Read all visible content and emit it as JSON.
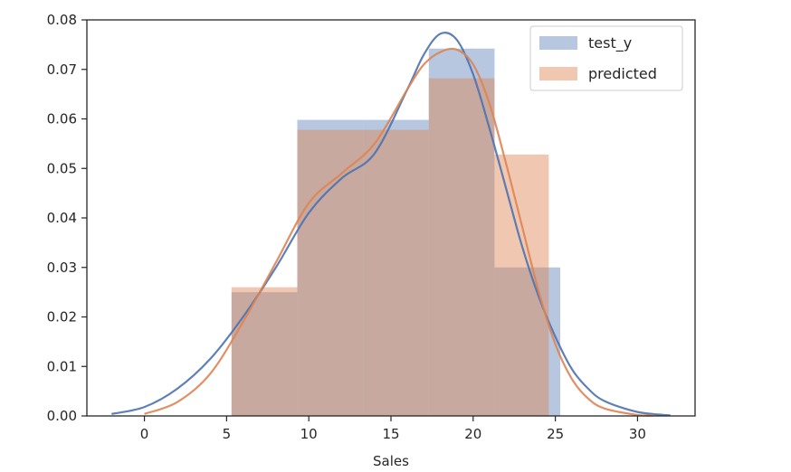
{
  "chart_data": {
    "type": "bar",
    "xlabel": "Sales",
    "ylabel": "",
    "xlim": [
      -3.5,
      33.5
    ],
    "ylim": [
      0,
      0.08
    ],
    "xticks": [
      0,
      5,
      10,
      15,
      20,
      25,
      30
    ],
    "xtick_labels": [
      "0",
      "5",
      "10",
      "15",
      "20",
      "25",
      "30"
    ],
    "yticks": [
      0,
      0.01,
      0.02,
      0.03,
      0.04,
      0.05,
      0.06,
      0.07,
      0.08
    ],
    "ytick_labels": [
      "0.00",
      "0.01",
      "0.02",
      "0.03",
      "0.04",
      "0.05",
      "0.06",
      "0.07",
      "0.08"
    ],
    "grid": false,
    "legend_position": "top-right",
    "series": [
      {
        "name": "test_y",
        "color": "#4c72b0",
        "histogram": {
          "bins": [
            [
              5.3,
              9.3
            ],
            [
              9.3,
              13.3
            ],
            [
              13.3,
              17.3
            ],
            [
              17.3,
              21.3
            ],
            [
              21.3,
              25.3
            ]
          ],
          "density": [
            0.025,
            0.0598,
            0.0598,
            0.0742,
            0.03
          ]
        },
        "kde": {
          "x": [
            -2,
            0,
            2,
            4,
            6,
            8,
            10,
            12,
            14,
            16,
            17,
            18,
            19,
            20,
            21,
            22,
            23,
            24,
            25,
            26,
            27,
            28,
            30,
            32
          ],
          "y": [
            0.0004,
            0.0018,
            0.0055,
            0.0115,
            0.02,
            0.03,
            0.041,
            0.048,
            0.053,
            0.066,
            0.073,
            0.0772,
            0.076,
            0.069,
            0.058,
            0.046,
            0.034,
            0.024,
            0.016,
            0.0095,
            0.0055,
            0.003,
            0.0008,
            0.0001
          ]
        }
      },
      {
        "name": "predicted",
        "color": "#dd8452",
        "histogram": {
          "bins": [
            [
              5.3,
              9.3
            ],
            [
              9.3,
              13.3
            ],
            [
              13.3,
              17.3
            ],
            [
              17.3,
              21.3
            ],
            [
              21.3,
              24.6
            ]
          ],
          "density": [
            0.026,
            0.0578,
            0.0578,
            0.0682,
            0.0528
          ]
        },
        "kde": {
          "x": [
            0,
            2,
            4,
            6,
            8,
            10,
            12,
            14,
            16,
            17,
            18,
            19,
            20,
            21,
            22,
            23,
            24,
            25,
            26,
            27,
            28,
            30,
            31
          ],
          "y": [
            0.0004,
            0.0028,
            0.0085,
            0.019,
            0.031,
            0.043,
            0.049,
            0.055,
            0.066,
            0.071,
            0.0735,
            0.074,
            0.071,
            0.063,
            0.051,
            0.038,
            0.025,
            0.0145,
            0.0075,
            0.0035,
            0.0015,
            0.0002,
            0.0001
          ]
        }
      }
    ]
  }
}
